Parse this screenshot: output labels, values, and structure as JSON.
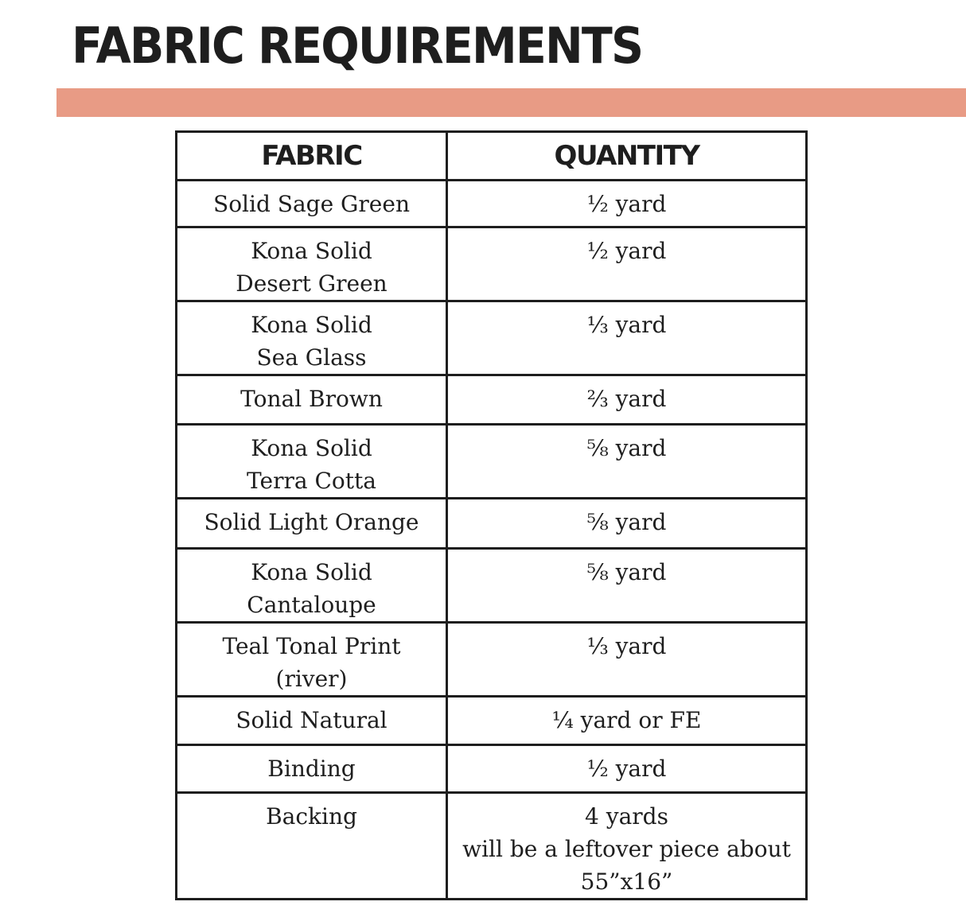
{
  "title": "FABRIC REQUIREMENTS",
  "accent_color": "#E89B85",
  "table": {
    "headers": [
      "FABRIC",
      "QUANTITY"
    ],
    "rows": [
      {
        "fabric": [
          "Solid Sage Green"
        ],
        "quantity": [
          "½ yard"
        ]
      },
      {
        "fabric": [
          "Kona Solid",
          "Desert Green"
        ],
        "quantity": [
          "½ yard"
        ]
      },
      {
        "fabric": [
          "Kona Solid",
          "Sea Glass"
        ],
        "quantity": [
          "⅓ yard"
        ]
      },
      {
        "fabric": [
          "Tonal Brown"
        ],
        "quantity": [
          "⅔ yard"
        ]
      },
      {
        "fabric": [
          "Kona Solid",
          "Terra Cotta"
        ],
        "quantity": [
          "⅝ yard"
        ]
      },
      {
        "fabric": [
          "Solid Light Orange"
        ],
        "quantity": [
          "⅝ yard"
        ]
      },
      {
        "fabric": [
          "Kona Solid",
          "Cantaloupe"
        ],
        "quantity": [
          "⅝ yard"
        ]
      },
      {
        "fabric": [
          "Teal Tonal Print",
          "(river)"
        ],
        "quantity": [
          "⅓ yard"
        ]
      },
      {
        "fabric": [
          "Solid Natural"
        ],
        "quantity": [
          "¼ yard or FE"
        ]
      },
      {
        "fabric": [
          "Binding"
        ],
        "quantity": [
          "½ yard"
        ]
      },
      {
        "fabric": [
          "Backing"
        ],
        "quantity": [
          "4 yards",
          "will be a leftover piece about",
          "55”x16”"
        ]
      }
    ]
  }
}
